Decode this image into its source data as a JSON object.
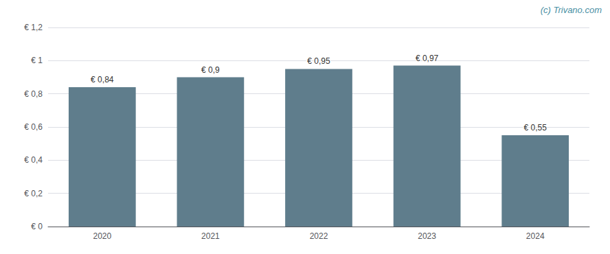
{
  "chart_data": {
    "type": "bar",
    "categories": [
      "2020",
      "2021",
      "2022",
      "2023",
      "2024"
    ],
    "values": [
      0.84,
      0.9,
      0.95,
      0.97,
      0.55
    ],
    "value_labels": [
      "€ 0,84",
      "€ 0,9",
      "€ 0,95",
      "€ 0,97",
      "€ 0,55"
    ],
    "data_labels": true,
    "color": "#5f7d8c",
    "ylim": [
      0,
      1.2
    ],
    "yticks": [
      {
        "value": 0,
        "label": "€ 0"
      },
      {
        "value": 0.2,
        "label": "€ 0,2"
      },
      {
        "value": 0.4,
        "label": "€ 0,4"
      },
      {
        "value": 0.6,
        "label": "€ 0,6"
      },
      {
        "value": 0.8,
        "label": "€ 0,8"
      },
      {
        "value": 1.0,
        "label": "€ 1"
      },
      {
        "value": 1.2,
        "label": "€ 1,2"
      }
    ],
    "grid": true,
    "annotations": [
      "(c) Trivano.com"
    ]
  }
}
